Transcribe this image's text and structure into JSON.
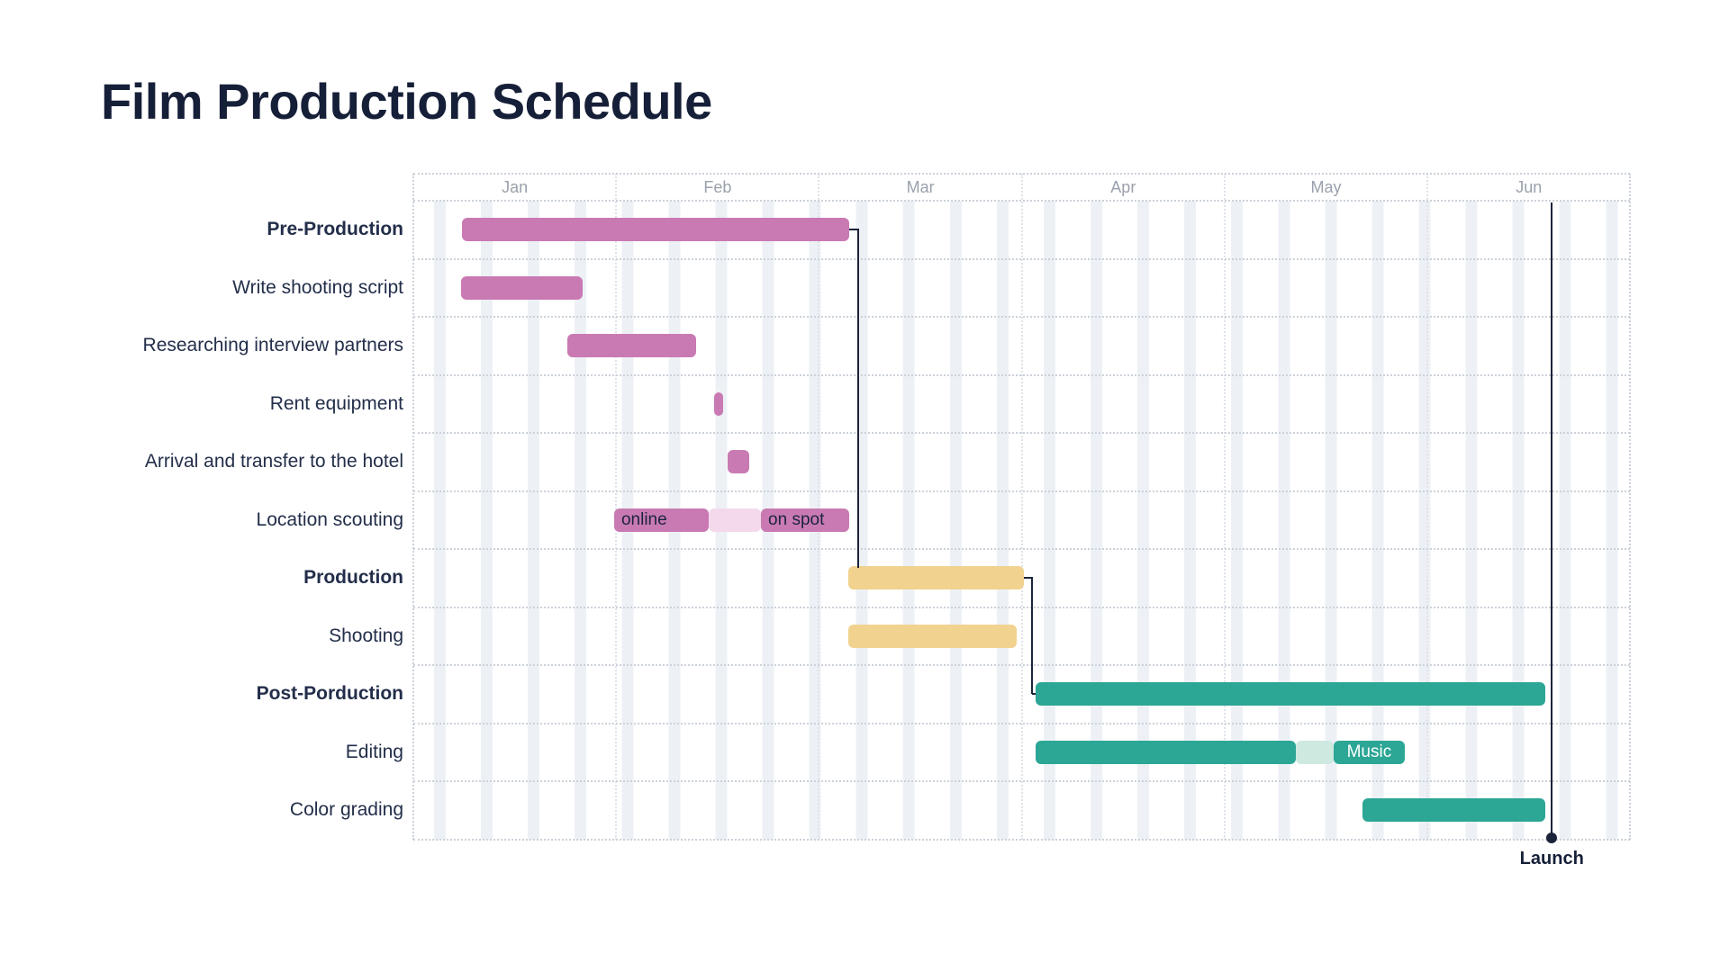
{
  "title": "Film Production Schedule",
  "colors": {
    "pink": "#c97ab2",
    "pink_light": "#f4d9ec",
    "yellow": "#f1d28e",
    "teal": "#2ca695",
    "teal_light": "#cde9e0",
    "connector": "#1b2439",
    "title_text": "#161f38",
    "task_text": "#232e4a",
    "month_text": "#9aa1ac",
    "weekend_stripe": "#edf1f6",
    "grid_dots": "#ccd2da"
  },
  "chart_data": {
    "type": "bar",
    "subtype": "gantt",
    "title": "Film Production Schedule",
    "months": [
      "Jan",
      "Feb",
      "Mar",
      "Apr",
      "May",
      "Jun"
    ],
    "axis_range_months": [
      0,
      6
    ],
    "weekend_stripes": true,
    "tasks": [
      {
        "label": "Pre-Production",
        "bold": true,
        "palette": "pink",
        "segments": [
          {
            "start": 0.24,
            "end": 2.149,
            "type": "solid"
          }
        ]
      },
      {
        "label": "Write shooting script",
        "bold": false,
        "palette": "pink",
        "segments": [
          {
            "start": 0.235,
            "end": 0.835,
            "type": "solid"
          }
        ]
      },
      {
        "label": "Researching interview partners",
        "bold": false,
        "palette": "pink",
        "segments": [
          {
            "start": 0.759,
            "end": 1.394,
            "type": "solid"
          }
        ]
      },
      {
        "label": "Rent equipment",
        "bold": false,
        "palette": "pink",
        "segments": [
          {
            "start": 1.483,
            "end": 1.527,
            "type": "solid"
          }
        ]
      },
      {
        "label": "Arrival and transfer to the hotel",
        "bold": false,
        "palette": "pink",
        "segments": [
          {
            "start": 1.549,
            "end": 1.656,
            "type": "solid"
          }
        ]
      },
      {
        "label": "Location scouting",
        "bold": false,
        "palette": "pink",
        "segments": [
          {
            "start": 0.99,
            "end": 1.456,
            "type": "solid",
            "text": "online",
            "text_style": "dark"
          },
          {
            "start": 1.456,
            "end": 1.714,
            "type": "light"
          },
          {
            "start": 1.714,
            "end": 2.149,
            "type": "solid",
            "text": "on spot",
            "text_style": "dark"
          }
        ]
      },
      {
        "label": "Production",
        "bold": true,
        "palette": "yellow",
        "segments": [
          {
            "start": 2.144,
            "end": 3.01,
            "type": "solid"
          }
        ]
      },
      {
        "label": "Shooting",
        "bold": false,
        "palette": "yellow",
        "segments": [
          {
            "start": 2.144,
            "end": 2.975,
            "type": "solid"
          }
        ]
      },
      {
        "label": "Post-Porduction",
        "bold": true,
        "palette": "teal",
        "segments": [
          {
            "start": 3.068,
            "end": 5.581,
            "type": "solid"
          }
        ]
      },
      {
        "label": "Editing",
        "bold": false,
        "palette": "teal",
        "segments": [
          {
            "start": 3.068,
            "end": 4.351,
            "type": "solid"
          },
          {
            "start": 4.351,
            "end": 4.537,
            "type": "light"
          },
          {
            "start": 4.537,
            "end": 4.888,
            "type": "solid",
            "text": "Music",
            "text_style": "white"
          }
        ]
      },
      {
        "label": "Color grading",
        "bold": false,
        "palette": "teal",
        "segments": [
          {
            "start": 4.679,
            "end": 5.581,
            "type": "solid"
          }
        ]
      }
    ],
    "connectors": [
      {
        "from_task": 0,
        "to_task": 6,
        "route": "down-to-top"
      },
      {
        "from_task": 6,
        "to_task": 8,
        "route": "down-to-left"
      }
    ],
    "milestone": {
      "label": "Launch",
      "month": 5.613
    }
  }
}
